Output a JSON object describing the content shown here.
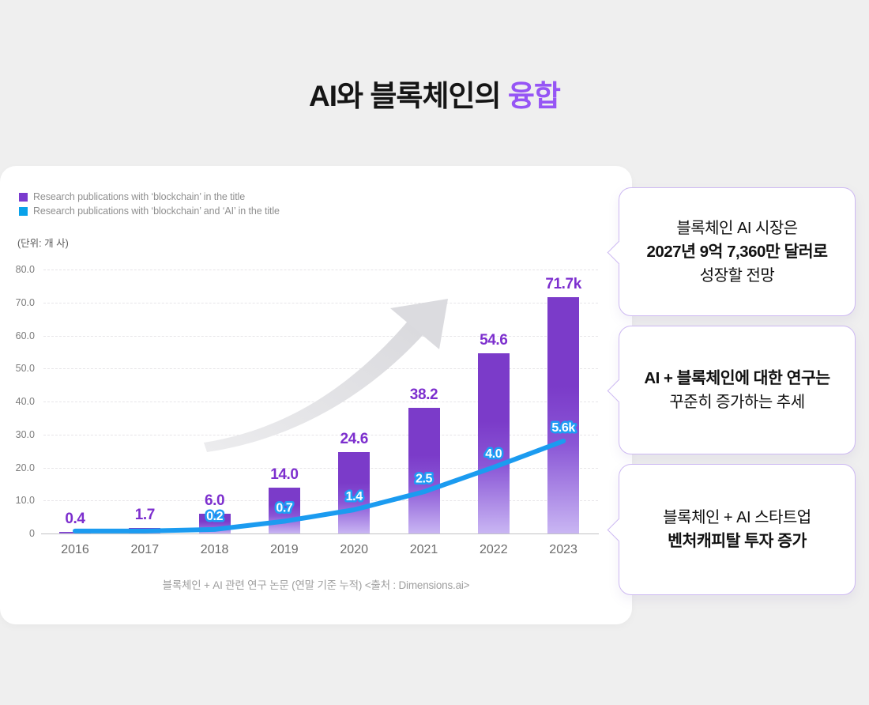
{
  "title": {
    "prefix": "AI와 블록체인의 ",
    "accent": "융합",
    "accent_color": "#9655F5"
  },
  "legend": {
    "items": [
      {
        "label": "Research publications with ‘blockchain’ in the title",
        "color": "#7A3BCE"
      },
      {
        "label": "Research publications with ‘blockchain’ and ‘AI’ in the title",
        "color": "#09A2EA"
      }
    ]
  },
  "unit_label": "(단위: 개 사)",
  "chart_data": {
    "type": "bar",
    "categories": [
      "2016",
      "2017",
      "2018",
      "2019",
      "2020",
      "2021",
      "2022",
      "2023"
    ],
    "y_ticks": [
      "80.0",
      "70.0",
      "60.0",
      "50.0",
      "40.0",
      "30.0",
      "20.0",
      "10.0",
      "0"
    ],
    "ylim": [
      0,
      80
    ],
    "grid": "horizontal-dashed",
    "legend_position": "top-left",
    "series": [
      {
        "name": "Research publications with 'blockchain' in the title",
        "type": "bar",
        "color": "#7B3BC9",
        "values": [
          0.4,
          1.7,
          6.0,
          14.0,
          24.6,
          38.2,
          54.6,
          71.7
        ],
        "value_labels": [
          "0.4",
          "1.7",
          "6.0",
          "14.0",
          "24.6",
          "38.2",
          "54.6",
          "71.7k"
        ]
      },
      {
        "name": "Research publications with 'blockchain' and 'AI' in the title",
        "type": "line",
        "color": "#1B9BF0",
        "values": [
          0.1,
          0.1,
          0.2,
          0.7,
          1.4,
          2.5,
          4.0,
          5.6
        ],
        "value_labels": [
          null,
          null,
          "0.2",
          "0.7",
          "1.4",
          "2.5",
          "4.0",
          "5.6k"
        ]
      }
    ],
    "annotation": "upward-trend-arrow",
    "caption": "블록체인 + AI 관련 연구 논문 (연말 기준 누적) <출처 : Dimensions.ai>"
  },
  "callouts": [
    {
      "lines": [
        {
          "text": "블록체인 AI 시장은",
          "bold": false
        },
        {
          "text": "2027년 9억 7,360만 달러로",
          "bold": true
        },
        {
          "text": "성장할 전망",
          "bold": false
        }
      ]
    },
    {
      "lines": [
        {
          "text": "AI + 블록체인에 대한 연구는",
          "bold": true
        },
        {
          "text": "꾸준히 증가하는 추세",
          "bold": false
        }
      ]
    },
    {
      "lines": [
        {
          "text": "블록체인 + AI 스타트업",
          "bold": false
        },
        {
          "text": "벤처캐피탈 투자 증가",
          "bold": true
        }
      ]
    }
  ]
}
